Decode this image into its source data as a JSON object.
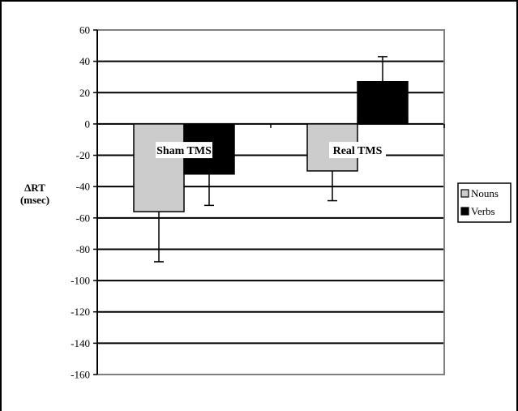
{
  "chart_data": {
    "type": "bar",
    "categories": [
      "Sham TMS",
      "Real TMS"
    ],
    "series": [
      {
        "name": "Nouns",
        "values": [
          -56,
          -30
        ],
        "errors": [
          32,
          19
        ],
        "color": "#cccccc"
      },
      {
        "name": "Verbs",
        "values": [
          -32,
          27
        ],
        "errors": [
          20,
          16
        ],
        "color": "#000000"
      }
    ],
    "ylabel": [
      "ΔRT",
      "(msec)"
    ],
    "ylim": [
      -160,
      60
    ],
    "yticks": [
      60,
      40,
      20,
      0,
      -20,
      -40,
      -60,
      -80,
      -100,
      -120,
      -140,
      -160
    ],
    "grid": true,
    "legend": "right"
  }
}
